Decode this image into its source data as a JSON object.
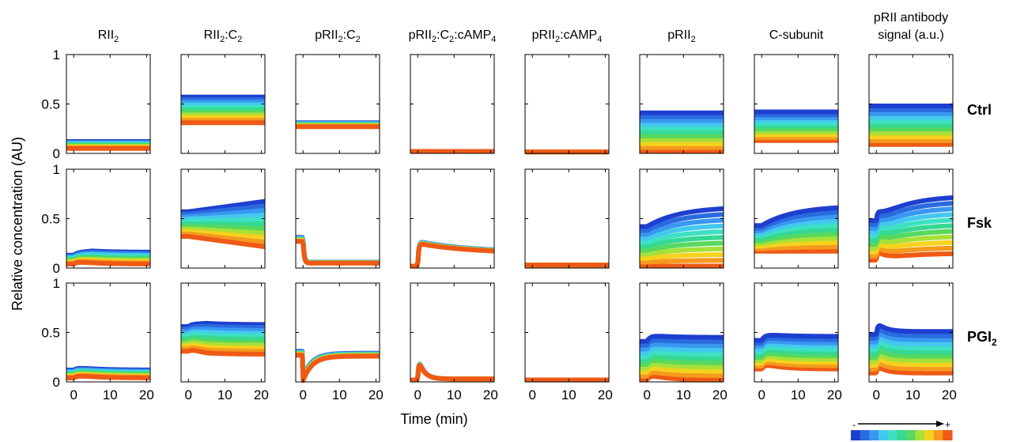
{
  "chart_data": {
    "type": "line",
    "ylabel": "Relative concentration (AU)",
    "xlabel": "Time (min)",
    "xlim": [
      -2,
      21
    ],
    "ylim": [
      0,
      1
    ],
    "x_ticks": [
      0,
      10,
      20
    ],
    "y_ticks": [
      0,
      0.5,
      1
    ],
    "y_tick_labels": [
      "0",
      "0.5",
      "1"
    ],
    "grid": false,
    "columns": [
      {
        "label": "RII",
        "sub": "2",
        "rest": ""
      },
      {
        "label": "RII",
        "sub": "2",
        "rest": ":C",
        "sub2": "2"
      },
      {
        "label": "pRII",
        "sub": "2",
        "rest": ":C",
        "sub2": "2"
      },
      {
        "label": "pRII",
        "sub": "2",
        "rest": ":C",
        "sub2": "2",
        "rest2": ":cAMP",
        "sub3": "4"
      },
      {
        "label": "pRII",
        "sub": "2",
        "rest": ":cAMP",
        "sub2": "4"
      },
      {
        "label": "pRII",
        "sub": "2",
        "rest": ""
      },
      {
        "label": "C-subunit",
        "sub": "",
        "rest": ""
      },
      {
        "label": "pRII antibody",
        "label2": "signal (a.u.)",
        "sub": "",
        "rest": ""
      }
    ],
    "rows": [
      {
        "label": "Ctrl",
        "sub": ""
      },
      {
        "label": "Fsk",
        "sub": ""
      },
      {
        "label": "PGI",
        "sub": "2"
      }
    ],
    "colorbar": {
      "minus": "-",
      "plus": "+"
    },
    "series_colors": [
      "#1e3fcf",
      "#2a6be0",
      "#3a97f0",
      "#44c9ee",
      "#3ee0c4",
      "#36d892",
      "#57d85e",
      "#a8e03a",
      "#f5d21e",
      "#f59a1e",
      "#ee5a16"
    ],
    "panels": {
      "Ctrl": {
        "RII_2": {
          "kind": "flat",
          "start": [
            0.12,
            0.05
          ],
          "end": [
            0.12,
            0.05
          ]
        },
        "RII_2:C_2": {
          "kind": "flat",
          "start": [
            0.57,
            0.31
          ],
          "end": [
            0.57,
            0.31
          ]
        },
        "pRII_2:C_2": {
          "kind": "flat",
          "start": [
            0.31,
            0.27
          ],
          "end": [
            0.31,
            0.27
          ]
        },
        "pRII_2:C_2:cAMP_4": {
          "kind": "flat",
          "start": [
            0.02,
            0.02
          ],
          "end": [
            0.02,
            0.02
          ]
        },
        "pRII_2:cAMP_4": {
          "kind": "flat",
          "start": [
            0.015,
            0.015
          ],
          "end": [
            0.015,
            0.015
          ]
        },
        "pRII_2": {
          "kind": "flat",
          "start": [
            0.41,
            0.02
          ],
          "end": [
            0.41,
            0.02
          ],
          "reverse": true
        },
        "C-subunit": {
          "kind": "flat",
          "start": [
            0.42,
            0.13
          ],
          "end": [
            0.42,
            0.13
          ],
          "reverse": true
        },
        "pRII antibody signal (a.u.)": {
          "kind": "flat",
          "start": [
            0.48,
            0.09
          ],
          "end": [
            0.48,
            0.09
          ],
          "reverse": true
        }
      },
      "Fsk": {
        "RII_2": {
          "kind": "bump",
          "start": [
            0.13,
            0.04
          ],
          "end": [
            0.16,
            0.04
          ]
        },
        "RII_2:C_2": {
          "kind": "fan",
          "start": [
            0.57,
            0.32
          ],
          "end": [
            0.67,
            0.22
          ]
        },
        "pRII_2:C_2": {
          "kind": "drop",
          "start": [
            0.31,
            0.27
          ],
          "end": [
            0.06,
            0.05
          ]
        },
        "pRII_2:C_2:cAMP_4": {
          "kind": "pulse_slow",
          "start": [
            0.02,
            0.02
          ],
          "peak": [
            0.27,
            0.25
          ],
          "end": [
            0.16,
            0.15
          ]
        },
        "pRII_2:cAMP_4": {
          "kind": "flat",
          "start": [
            0.03,
            0.03
          ],
          "end": [
            0.04,
            0.04
          ]
        },
        "pRII_2": {
          "kind": "rise",
          "start": [
            0.42,
            0.02
          ],
          "end": [
            0.62,
            0.02
          ],
          "reverse": true
        },
        "C-subunit": {
          "kind": "rise",
          "start": [
            0.43,
            0.17
          ],
          "end": [
            0.63,
            0.17
          ],
          "reverse": true
        },
        "pRII antibody signal (a.u.)": {
          "kind": "rise_spike",
          "start": [
            0.48,
            0.08
          ],
          "end": [
            0.73,
            0.15
          ],
          "reverse": true
        }
      },
      "PGI_2": {
        "RII_2": {
          "kind": "bump",
          "start": [
            0.12,
            0.04
          ],
          "end": [
            0.12,
            0.04
          ]
        },
        "RII_2:C_2": {
          "kind": "flat_bump",
          "start": [
            0.56,
            0.31
          ],
          "end": [
            0.58,
            0.28
          ]
        },
        "pRII_2:C_2": {
          "kind": "dip",
          "start": [
            0.31,
            0.27
          ],
          "end": [
            0.29,
            0.26
          ]
        },
        "pRII_2:C_2:cAMP_4": {
          "kind": "pulse_fast",
          "start": [
            0.02,
            0.02
          ],
          "peak": [
            0.27,
            0.25
          ],
          "end": [
            0.03,
            0.03
          ]
        },
        "pRII_2:cAMP_4": {
          "kind": "flat",
          "start": [
            0.02,
            0.02
          ],
          "end": [
            0.03,
            0.03
          ]
        },
        "pRII_2": {
          "kind": "hump",
          "start": [
            0.41,
            0.02
          ],
          "end": [
            0.45,
            0.02
          ],
          "reverse": true
        },
        "C-subunit": {
          "kind": "hump",
          "start": [
            0.42,
            0.13
          ],
          "end": [
            0.46,
            0.13
          ],
          "reverse": true
        },
        "pRII antibody signal (a.u.)": {
          "kind": "spike_decay",
          "start": [
            0.48,
            0.09
          ],
          "end": [
            0.51,
            0.09
          ],
          "reverse": true
        }
      }
    }
  }
}
